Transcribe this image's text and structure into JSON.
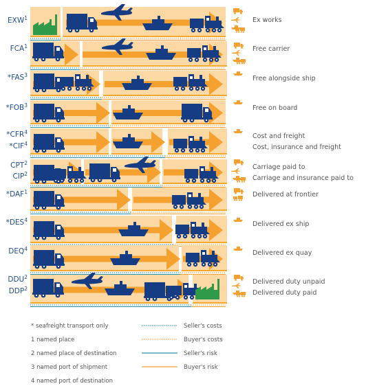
{
  "colors": {
    "band": "#fcd9a4",
    "band_dark": "#f7a82a",
    "arrow": "#f5a12f",
    "vehicle": "#163c84",
    "factory": "#2f9a4a",
    "label": "#1f4e8c",
    "text": "#555555",
    "seller_line": "#2a8fa8",
    "buyer_line": "#f5a12f",
    "mini_icon": "#f5a12f"
  },
  "rows": [
    {
      "codes": [
        {
          "code": "EXW",
          "sup": "1",
          "prefix": ""
        }
      ],
      "terms": [
        "Ex works"
      ]
    },
    {
      "codes": [
        {
          "code": "FCA",
          "sup": "1",
          "prefix": ""
        }
      ],
      "terms": [
        "Free carrier"
      ]
    },
    {
      "codes": [
        {
          "code": "FAS",
          "sup": "3",
          "prefix": "*"
        }
      ],
      "terms": [
        "Free alongside ship"
      ]
    },
    {
      "codes": [
        {
          "code": "FOB",
          "sup": "3",
          "prefix": "*"
        }
      ],
      "terms": [
        "Free on board"
      ]
    },
    {
      "codes": [
        {
          "code": "CFR",
          "sup": "4",
          "prefix": "*"
        },
        {
          "code": "CIF",
          "sup": "4",
          "prefix": "*"
        }
      ],
      "terms": [
        "Cost and freight",
        "Cost, insurance and freight"
      ]
    },
    {
      "codes": [
        {
          "code": "CPT",
          "sup": "2",
          "prefix": ""
        },
        {
          "code": "CIP",
          "sup": "2",
          "prefix": ""
        }
      ],
      "terms": [
        "Carriage paid to",
        "Carriage and insurance paid to"
      ]
    },
    {
      "codes": [
        {
          "code": "DAF",
          "sup": "1",
          "prefix": "*"
        }
      ],
      "terms": [
        "Delivered at frontier"
      ]
    },
    {
      "codes": [
        {
          "code": "DES",
          "sup": "4",
          "prefix": "*"
        }
      ],
      "terms": [
        "Delivered ex ship"
      ]
    },
    {
      "codes": [
        {
          "code": "DEQ",
          "sup": "4",
          "prefix": ""
        }
      ],
      "terms": [
        "Delivered ex quay"
      ]
    },
    {
      "codes": [
        {
          "code": "DDU",
          "sup": "2",
          "prefix": ""
        },
        {
          "code": "DDP",
          "sup": "2",
          "prefix": ""
        }
      ],
      "terms": [
        "Delivered duty unpaid",
        "Delivered duty paid"
      ]
    }
  ],
  "footnotes": [
    "* seafreight transport only",
    "1 named place",
    "2 named place of destination",
    "3 named port of shipment",
    "4 named port of destination"
  ],
  "legend": [
    {
      "label": "Seller's costs",
      "style": "seller-dotted"
    },
    {
      "label": "Buyer's costs",
      "style": "buyer-dotted"
    },
    {
      "label": "Seller's risk",
      "style": "seller-solid"
    },
    {
      "label": "Buyer's risk",
      "style": "buyer-solid"
    }
  ]
}
